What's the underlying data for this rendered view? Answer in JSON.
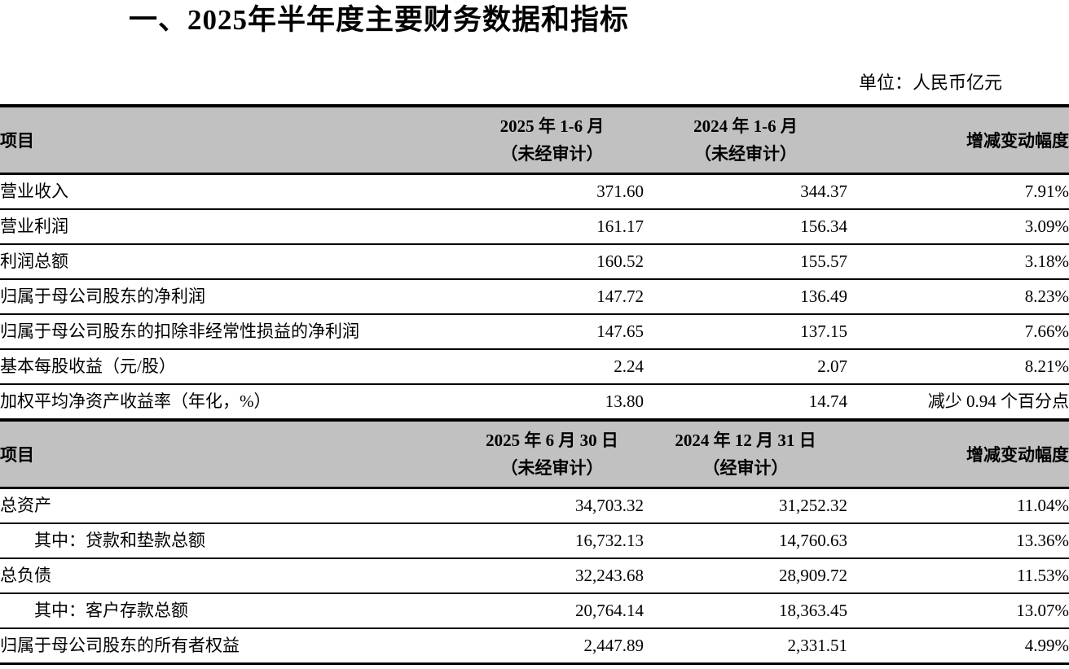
{
  "title": "一、2025年半年度主要财务数据和指标",
  "unit_note": "单位：人民币亿元",
  "colors": {
    "header_bg": "#c1c1c1",
    "border": "#000000",
    "text": "#000000"
  },
  "section1": {
    "header": {
      "item": "项目",
      "col2025_line1": "2025 年 1-6 月",
      "col2025_line2": "（未经审计）",
      "col2024_line1": "2024 年 1-6 月",
      "col2024_line2": "（未经审计）",
      "change": "增减变动幅度"
    },
    "rows": [
      {
        "item": "营业收入",
        "v2025": "371.60",
        "v2024": "344.37",
        "change": "7.91%"
      },
      {
        "item": "营业利润",
        "v2025": "161.17",
        "v2024": "156.34",
        "change": "3.09%"
      },
      {
        "item": "利润总额",
        "v2025": "160.52",
        "v2024": "155.57",
        "change": "3.18%"
      },
      {
        "item": "归属于母公司股东的净利润",
        "v2025": "147.72",
        "v2024": "136.49",
        "change": "8.23%"
      },
      {
        "item": "归属于母公司股东的扣除非经常性损益的净利润",
        "v2025": "147.65",
        "v2024": "137.15",
        "change": "7.66%"
      },
      {
        "item": "基本每股收益（元/股）",
        "v2025": "2.24",
        "v2024": "2.07",
        "change": "8.21%"
      },
      {
        "item": "加权平均净资产收益率（年化，%）",
        "v2025": "13.80",
        "v2024": "14.74",
        "change": "减少 0.94 个百分点"
      }
    ]
  },
  "section2": {
    "header": {
      "item": "项目",
      "col2025_line1": "2025 年 6 月 30 日",
      "col2025_line2": "（未经审计）",
      "col2024_line1": "2024 年 12 月 31 日",
      "col2024_line2": "（经审计）",
      "change": "增减变动幅度"
    },
    "rows": [
      {
        "item": "总资产",
        "v2025": "34,703.32",
        "v2024": "31,252.32",
        "change": "11.04%"
      },
      {
        "item": "其中：贷款和垫款总额",
        "v2025": "16,732.13",
        "v2024": "14,760.63",
        "change": "13.36%"
      },
      {
        "item": "总负债",
        "v2025": "32,243.68",
        "v2024": "28,909.72",
        "change": "11.53%"
      },
      {
        "item": "其中：客户存款总额",
        "v2025": "20,764.14",
        "v2024": "18,363.45",
        "change": "13.07%"
      },
      {
        "item": "归属于母公司股东的所有者权益",
        "v2025": "2,447.89",
        "v2024": "2,331.51",
        "change": "4.99%"
      }
    ]
  }
}
